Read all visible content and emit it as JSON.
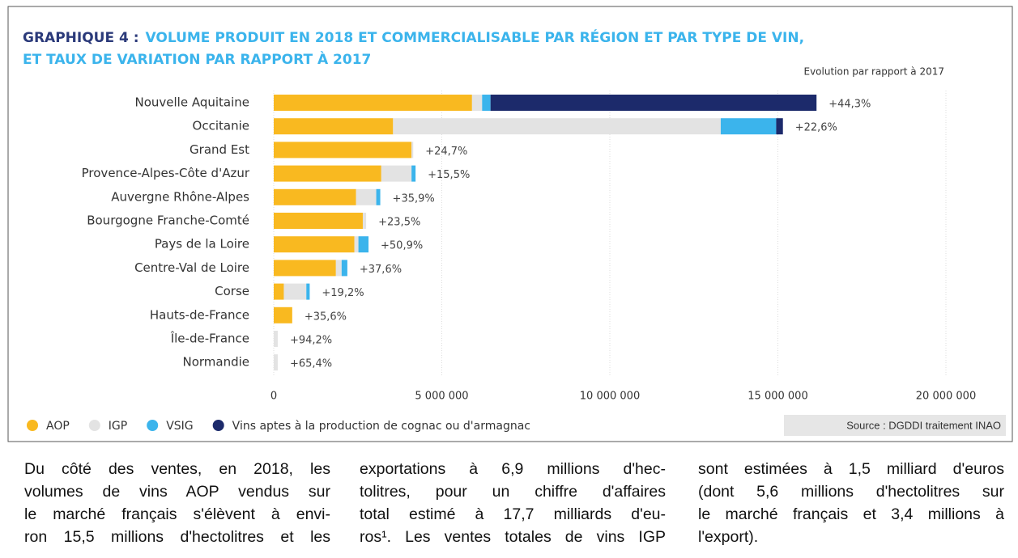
{
  "chart_data": {
    "type": "stacked-bar-horizontal",
    "title_number": "GRAPHIQUE 4 :",
    "title": [
      "VOLUME PRODUIT EN 2018 ET COMMERCIALISABLE PAR RÉGION ET PAR TYPE DE VIN,",
      "ET TAUX DE VARIATION PAR RAPPORT À 2017"
    ],
    "annotation": "Evolution par rapport à 2017",
    "source": "Source : DGDDI traitement INAO",
    "categories": [
      "Nouvelle Aquitaine",
      "Occitanie",
      "Grand Est",
      "Provence-Alpes-Côte d'Azur",
      "Auvergne Rhône-Alpes",
      "Bourgogne Franche-Comté",
      "Pays de la Loire",
      "Centre-Val de Loire",
      "Corse",
      "Hauts-de-France",
      "Île-de-France",
      "Normandie"
    ],
    "series": [
      {
        "name": "AOP",
        "color": "#f9b920",
        "values": [
          5900000,
          3550000,
          4100000,
          3200000,
          2450000,
          2650000,
          2400000,
          1850000,
          300000,
          550000,
          0,
          0
        ]
      },
      {
        "name": "IGP",
        "color": "#e3e3e3",
        "values": [
          300000,
          9750000,
          50000,
          900000,
          600000,
          100000,
          120000,
          170000,
          670000,
          0,
          120000,
          120000
        ]
      },
      {
        "name": "VSIG",
        "color": "#3bb4ec",
        "values": [
          250000,
          1650000,
          0,
          120000,
          120000,
          0,
          300000,
          170000,
          100000,
          0,
          0,
          0
        ]
      },
      {
        "name": "Vins aptes à la production de cognac ou d'armagnac",
        "color": "#1c2a6b",
        "values": [
          9700000,
          200000,
          0,
          0,
          0,
          0,
          0,
          0,
          0,
          0,
          0,
          0
        ]
      }
    ],
    "growth": {
      "values": [
        44.3,
        22.6,
        24.7,
        15.5,
        35.9,
        23.5,
        50.9,
        37.6,
        19.2,
        35.6,
        94.2,
        65.4
      ],
      "value_labels": [
        "+44,3%",
        "+22,6%",
        "+24,7%",
        "+15,5%",
        "+35,9%",
        "+23,5%",
        "+50,9%",
        "+37,6%",
        "+19,2%",
        "+35,6%",
        "+94,2%",
        "+65,4%"
      ]
    },
    "xlim": [
      0,
      20000000
    ],
    "xticks": [
      0,
      {
        "value": 5000000,
        "label": "5 000 000"
      },
      {
        "value": 10000000,
        "label": "10 000 000"
      },
      {
        "value": 15000000,
        "label": "15 000 000"
      },
      {
        "value": 20000000,
        "label": "20 000 000"
      }
    ],
    "grid": true
  },
  "body": {
    "columns": [
      [
        "Du côté des ventes, en 2018, les",
        "volumes de vins AOP vendus sur",
        "le marché français s'élèvent à envi-",
        "ron 15,5 millions d'hectolitres et les"
      ],
      [
        "exportations à 6,9 millions d'hec-",
        "tolitres, pour un chiffre d'affaires",
        "total estimé à 17,7 milliards d'eu-",
        "ros¹. Les ventes totales de vins IGP"
      ],
      [
        "sont estimées à 1,5 milliard d'euros",
        "(dont 5,6 millions d'hectolitres sur",
        "le marché français et 3,4 millions à",
        "l'export)."
      ]
    ]
  }
}
